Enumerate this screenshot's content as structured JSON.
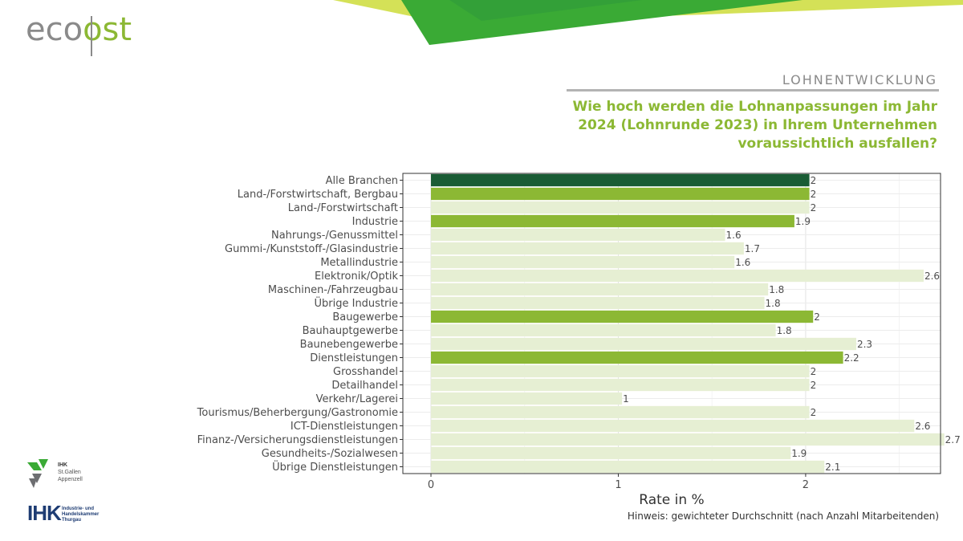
{
  "brand": {
    "logo_prefix": "eco",
    "logo_suffix": "ost"
  },
  "header": {
    "section": "LOHNENTWICKLUNG",
    "question": "Wie hoch werden die Lohnanpassungen im Jahr 2024 (Lohnrunde 2023) in Ihrem Unternehmen voraussichtlich ausfallen?"
  },
  "footer_logos": {
    "ihk1_title": "IHK",
    "ihk1_sub1": "St.Gallen",
    "ihk1_sub2": "Appenzell",
    "ihk2_title": "IHK",
    "ihk2_sub1": "Industrie- und",
    "ihk2_sub2": "Handelskammer",
    "ihk2_sub3": "Thurgau"
  },
  "note": "Hinweis: gewichteter Durchschnitt (nach Anzahl Mitarbeitenden)",
  "colors": {
    "total": "#1a5c35",
    "sector": "#8cb834",
    "sub": "#e6efd3",
    "accent": "#8cb834"
  },
  "chart_data": {
    "type": "bar",
    "orientation": "horizontal",
    "xlabel": "Rate in %",
    "xlim": [
      -0.15,
      2.72
    ],
    "xticks": [
      0,
      1,
      2
    ],
    "grid": true,
    "categories": [
      "Alle Branchen",
      "Land-/Forstwirtschaft, Bergbau",
      "Land-/Forstwirtschaft",
      "Industrie",
      "Nahrungs-/Genussmittel",
      "Gummi-/Kunststoff-/Glasindustrie",
      "Metallindustrie",
      "Elektronik/Optik",
      "Maschinen-/Fahrzeugbau",
      "Übrige Industrie",
      "Baugewerbe",
      "Bauhauptgewerbe",
      "Baunebengewerbe",
      "Dienstleistungen",
      "Grosshandel",
      "Detailhandel",
      "Verkehr/Lagerei",
      "Tourismus/Beherbergung/Gastronomie",
      "ICT-Dienstleistungen",
      "Finanz-/Versicherungsdienstleistungen",
      "Gesundheits-/Sozialwesen",
      "Übrige Dienstleistungen"
    ],
    "values": [
      2.02,
      2.02,
      2.02,
      1.94,
      1.57,
      1.67,
      1.62,
      2.63,
      1.8,
      1.78,
      2.04,
      1.84,
      2.27,
      2.2,
      2.02,
      2.02,
      1.02,
      2.02,
      2.58,
      2.74,
      1.92,
      2.1
    ],
    "labels": [
      "2",
      "2",
      "2",
      "1.9",
      "1.6",
      "1.7",
      "1.6",
      "2.6",
      "1.8",
      "1.8",
      "2",
      "1.8",
      "2.3",
      "2.2",
      "2",
      "2",
      "1",
      "2",
      "2.6",
      "2.7",
      "1.9",
      "2.1"
    ],
    "level": [
      "total",
      "sector",
      "sub",
      "sector",
      "sub",
      "sub",
      "sub",
      "sub",
      "sub",
      "sub",
      "sector",
      "sub",
      "sub",
      "sector",
      "sub",
      "sub",
      "sub",
      "sub",
      "sub",
      "sub",
      "sub",
      "sub"
    ]
  }
}
